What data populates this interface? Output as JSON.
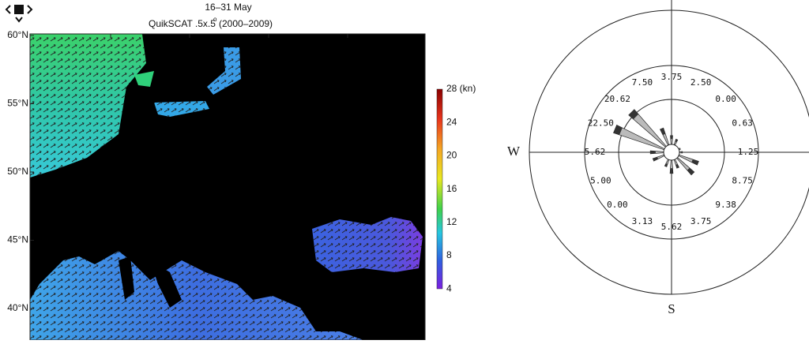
{
  "header": {
    "line1": "16–31 May",
    "line2": "QuikSCAT .5x.5",
    "degree": "o",
    "years": "(2000–2009)"
  },
  "map": {
    "lat_labels": [
      "60°N",
      "55°N",
      "50°N",
      "45°N",
      "40°N"
    ]
  },
  "colorbar": {
    "labels": [
      "28 (kn)",
      "24",
      "20",
      "16",
      "12",
      "8",
      "4"
    ]
  },
  "rose": {
    "compass": [
      "W",
      "S"
    ],
    "labels": [
      "3.75",
      "2.50",
      "0.00",
      "0.63",
      "1.25",
      "8.75",
      "9.38",
      "3.75",
      "5.62",
      "3.13",
      "0.00",
      "5.00",
      "5.62",
      "22.50",
      "20.62",
      "7.50"
    ]
  }
}
